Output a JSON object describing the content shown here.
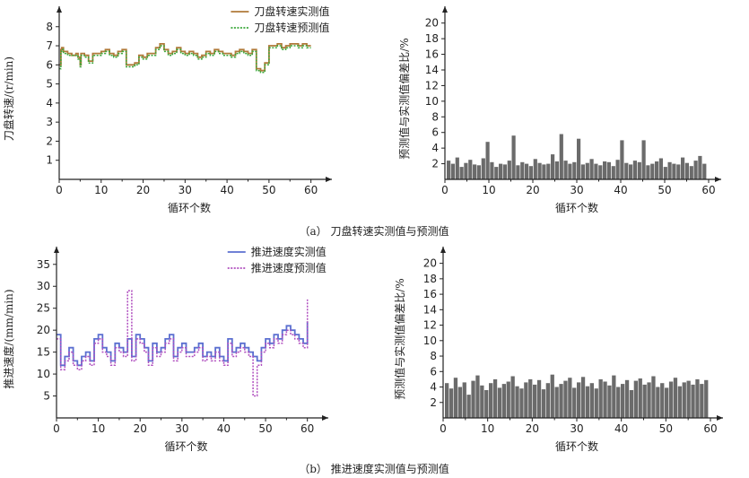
{
  "captions": {
    "a": "（a） 刀盘转速实测值与预测值",
    "b": "（b） 推进速度实测值与预测值"
  },
  "colors": {
    "actual_speed": "#b07a3a",
    "pred_speed": "#3aa83a",
    "actual_thrust": "#5b6fd0",
    "pred_thrust": "#b04fbf",
    "bars": "#6b6b6b"
  },
  "chart_data": [
    {
      "id": "a-left",
      "type": "line",
      "xlabel": "循环个数",
      "ylabel": "刀盘转速/(r/min)",
      "xlim": [
        0,
        62
      ],
      "ylim": [
        0,
        8.6
      ],
      "xticks": [
        0,
        10,
        20,
        30,
        40,
        50,
        60
      ],
      "yticks": [
        1,
        2,
        3,
        4,
        5,
        6,
        7,
        8
      ],
      "legend_position": "top-center",
      "series": [
        {
          "name": "刀盘转速实测值",
          "style": "solid",
          "color_key": "actual_speed",
          "x": [
            0,
            0.4,
            0.6,
            1,
            2,
            3,
            4,
            4.5,
            5,
            5.2,
            6,
            7,
            8,
            9,
            10,
            11,
            12,
            13,
            14,
            15,
            16,
            17,
            18,
            19,
            20,
            21,
            22,
            23,
            24,
            25,
            26,
            27,
            28,
            29,
            30,
            31,
            32,
            33,
            34,
            35,
            36,
            37,
            38,
            39,
            40,
            41,
            42,
            43,
            44,
            45,
            46,
            47,
            48,
            49,
            50,
            51,
            52,
            53,
            54,
            55,
            56,
            57,
            58,
            59,
            60
          ],
          "y": [
            6.0,
            6.8,
            6.9,
            6.7,
            6.6,
            6.5,
            6.6,
            6.4,
            6.0,
            6.6,
            6.5,
            6.2,
            6.6,
            6.6,
            6.7,
            6.8,
            6.6,
            6.5,
            6.7,
            6.8,
            6.0,
            6.0,
            6.1,
            6.5,
            6.4,
            6.6,
            6.6,
            6.9,
            7.1,
            6.8,
            6.6,
            6.7,
            6.9,
            6.7,
            6.6,
            6.7,
            6.6,
            6.4,
            6.5,
            6.7,
            6.6,
            6.8,
            6.7,
            6.6,
            6.6,
            6.5,
            6.7,
            6.8,
            6.7,
            6.6,
            6.8,
            5.8,
            5.7,
            6.1,
            7.0,
            7.0,
            7.1,
            6.9,
            7.0,
            7.1,
            7.1,
            7.0,
            7.1,
            7.0,
            7.0
          ]
        },
        {
          "name": "刀盘转速预测值",
          "style": "dotted",
          "color_key": "pred_speed",
          "x": [
            0,
            0.4,
            0.6,
            1,
            2,
            3,
            4,
            4.5,
            5,
            5.2,
            6,
            7,
            8,
            9,
            10,
            11,
            12,
            13,
            14,
            15,
            16,
            17,
            18,
            19,
            20,
            21,
            22,
            23,
            24,
            25,
            26,
            27,
            28,
            29,
            30,
            31,
            32,
            33,
            34,
            35,
            36,
            37,
            38,
            39,
            40,
            41,
            42,
            43,
            44,
            45,
            46,
            47,
            48,
            49,
            50,
            51,
            52,
            53,
            54,
            55,
            56,
            57,
            58,
            59,
            60
          ],
          "y": [
            5.8,
            6.7,
            6.8,
            6.6,
            6.5,
            6.5,
            6.5,
            6.3,
            5.9,
            6.5,
            6.4,
            6.1,
            6.5,
            6.5,
            6.6,
            6.7,
            6.5,
            6.4,
            6.6,
            6.7,
            5.9,
            5.9,
            6.0,
            6.4,
            6.3,
            6.5,
            6.5,
            6.8,
            7.0,
            6.7,
            6.5,
            6.6,
            6.8,
            6.6,
            6.5,
            6.6,
            6.5,
            6.3,
            6.4,
            6.6,
            6.5,
            6.7,
            6.6,
            6.5,
            6.5,
            6.4,
            6.6,
            6.7,
            6.6,
            6.5,
            6.7,
            5.7,
            5.6,
            6.0,
            6.9,
            6.9,
            7.0,
            6.8,
            6.9,
            7.0,
            7.0,
            6.9,
            7.0,
            6.9,
            6.9
          ]
        }
      ]
    },
    {
      "id": "a-right",
      "type": "bar",
      "xlabel": "循环个数",
      "ylabel": "预测值与实测值偏差比/%",
      "xlim": [
        0,
        60
      ],
      "ylim": [
        0,
        21
      ],
      "xticks": [
        0,
        10,
        20,
        30,
        40,
        50,
        60
      ],
      "yticks": [
        2,
        4,
        6,
        8,
        10,
        12,
        14,
        16,
        18,
        20
      ],
      "values": [
        2.4,
        2.0,
        2.8,
        1.6,
        2.1,
        2.5,
        1.9,
        1.8,
        2.7,
        4.8,
        2.2,
        1.6,
        2.0,
        1.9,
        2.4,
        5.6,
        1.8,
        2.2,
        2.0,
        1.7,
        2.6,
        2.1,
        1.9,
        2.0,
        3.2,
        2.3,
        5.8,
        2.4,
        2.0,
        2.2,
        5.2,
        1.9,
        2.1,
        2.6,
        2.0,
        1.8,
        2.3,
        2.2,
        1.7,
        2.5,
        5.0,
        2.1,
        1.9,
        2.4,
        2.2,
        5.0,
        1.8,
        2.0,
        2.3,
        2.7,
        1.6,
        2.2,
        2.0,
        1.9,
        2.8,
        2.1,
        1.7,
        2.4,
        3.0,
        2.0
      ]
    },
    {
      "id": "b-left",
      "type": "line",
      "xlabel": "循环个数",
      "ylabel": "推进速度/(mm/min)",
      "xlim": [
        0,
        62
      ],
      "ylim": [
        0,
        37
      ],
      "xticks": [
        0,
        10,
        20,
        30,
        40,
        50,
        60
      ],
      "yticks": [
        5,
        10,
        15,
        20,
        25,
        30,
        35
      ],
      "legend_position": "top-center",
      "series": [
        {
          "name": "推进速度实测值",
          "style": "solid",
          "color_key": "actual_thrust",
          "x": [
            0,
            1,
            2,
            3,
            4,
            5,
            6,
            7,
            8,
            9,
            10,
            11,
            12,
            13,
            14,
            15,
            16,
            17,
            18,
            19,
            20,
            21,
            22,
            23,
            24,
            25,
            26,
            27,
            28,
            29,
            30,
            31,
            32,
            33,
            34,
            35,
            36,
            37,
            38,
            39,
            40,
            41,
            42,
            43,
            44,
            45,
            46,
            47,
            48,
            49,
            50,
            51,
            52,
            53,
            54,
            55,
            56,
            57,
            58,
            59,
            60
          ],
          "y": [
            19,
            12,
            14,
            16,
            13,
            12,
            14,
            15,
            13,
            18,
            19,
            16,
            15,
            13,
            17,
            16,
            15,
            18,
            14,
            19,
            18,
            16,
            13,
            17,
            15,
            16,
            18,
            19,
            14,
            16,
            17,
            15,
            15,
            16,
            17,
            14,
            15,
            14,
            16,
            14,
            13,
            18,
            15,
            16,
            17,
            16,
            15,
            14,
            13,
            16,
            18,
            17,
            19,
            18,
            20,
            21,
            20,
            19,
            18,
            17,
            22
          ]
        },
        {
          "name": "推进速度预测值",
          "style": "dotted",
          "color_key": "pred_thrust",
          "x": [
            0,
            1,
            2,
            3,
            4,
            5,
            6,
            7,
            8,
            9,
            10,
            11,
            12,
            13,
            14,
            15,
            16,
            17,
            18,
            19,
            20,
            21,
            22,
            23,
            24,
            25,
            26,
            27,
            28,
            29,
            30,
            31,
            32,
            33,
            34,
            35,
            36,
            37,
            38,
            39,
            40,
            41,
            42,
            43,
            44,
            45,
            46,
            47,
            48,
            49,
            50,
            51,
            52,
            53,
            54,
            55,
            56,
            57,
            58,
            59,
            60
          ],
          "y": [
            18,
            11,
            13,
            15,
            12,
            11,
            13,
            14,
            12,
            17,
            18,
            15,
            14,
            12,
            16,
            15,
            14,
            29,
            13,
            18,
            17,
            15,
            12,
            16,
            14,
            15,
            17,
            18,
            13,
            15,
            16,
            14,
            14,
            15,
            16,
            13,
            14,
            13,
            15,
            13,
            12,
            17,
            14,
            15,
            16,
            15,
            14,
            5,
            12,
            15,
            17,
            16,
            18,
            17,
            19,
            20,
            19,
            18,
            17,
            16,
            27
          ]
        }
      ]
    },
    {
      "id": "b-right",
      "type": "bar",
      "xlabel": "循环个数",
      "ylabel": "预测值与实测值偏差比/%",
      "xlim": [
        0,
        60
      ],
      "ylim": [
        0,
        21
      ],
      "xticks": [
        0,
        10,
        20,
        30,
        40,
        50,
        60
      ],
      "yticks": [
        2,
        4,
        6,
        8,
        10,
        12,
        14,
        16,
        18,
        20
      ],
      "values": [
        4.5,
        3.8,
        5.2,
        4.0,
        4.6,
        3.0,
        4.8,
        5.5,
        4.2,
        3.6,
        4.5,
        5.0,
        3.9,
        4.4,
        4.7,
        5.4,
        4.1,
        3.8,
        4.6,
        5.0,
        4.3,
        4.9,
        3.7,
        4.5,
        5.6,
        4.0,
        4.4,
        4.8,
        5.2,
        3.9,
        4.6,
        5.3,
        4.1,
        4.5,
        3.8,
        5.0,
        4.7,
        4.2,
        5.5,
        4.0,
        4.4,
        4.9,
        3.6,
        4.8,
        5.1,
        4.3,
        4.6,
        5.4,
        4.0,
        4.5,
        3.9,
        4.7,
        5.2,
        4.1,
        4.6,
        4.8,
        4.3,
        5.0,
        4.4,
        4.9
      ]
    }
  ]
}
